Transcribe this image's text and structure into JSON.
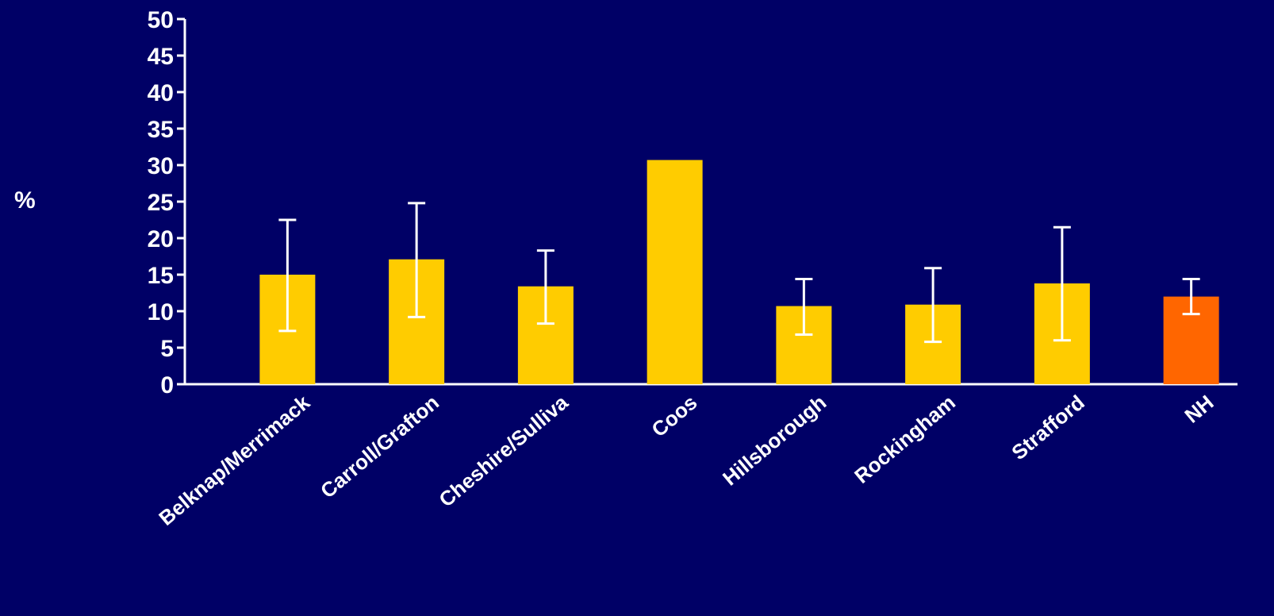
{
  "chart_data": {
    "type": "bar",
    "ylabel": "%",
    "ylim": [
      0,
      50
    ],
    "yticks": [
      0,
      5,
      10,
      15,
      20,
      25,
      30,
      35,
      40,
      45,
      50
    ],
    "grid": false,
    "categories": [
      "Belknap/Merrimack",
      "Carroll/Grafton",
      "Cheshire/Sulliva",
      "Coos",
      "Hillsborough",
      "Rockingham",
      "Strafford",
      "NH"
    ],
    "values": [
      15.0,
      17.1,
      13.4,
      30.7,
      10.7,
      10.9,
      13.8,
      12.0
    ],
    "error_low": [
      7.3,
      9.2,
      8.3,
      null,
      6.8,
      5.8,
      6.0,
      9.6
    ],
    "error_high": [
      22.5,
      24.8,
      18.3,
      null,
      14.4,
      15.9,
      21.5,
      14.4
    ],
    "bar_colors": [
      "#ffcc00",
      "#ffcc00",
      "#ffcc00",
      "#ffcc00",
      "#ffcc00",
      "#ffcc00",
      "#ffcc00",
      "#ff6600"
    ]
  },
  "colors": {
    "background": "#000066",
    "axis": "#ffffff",
    "error_bar": "#ffffff"
  }
}
